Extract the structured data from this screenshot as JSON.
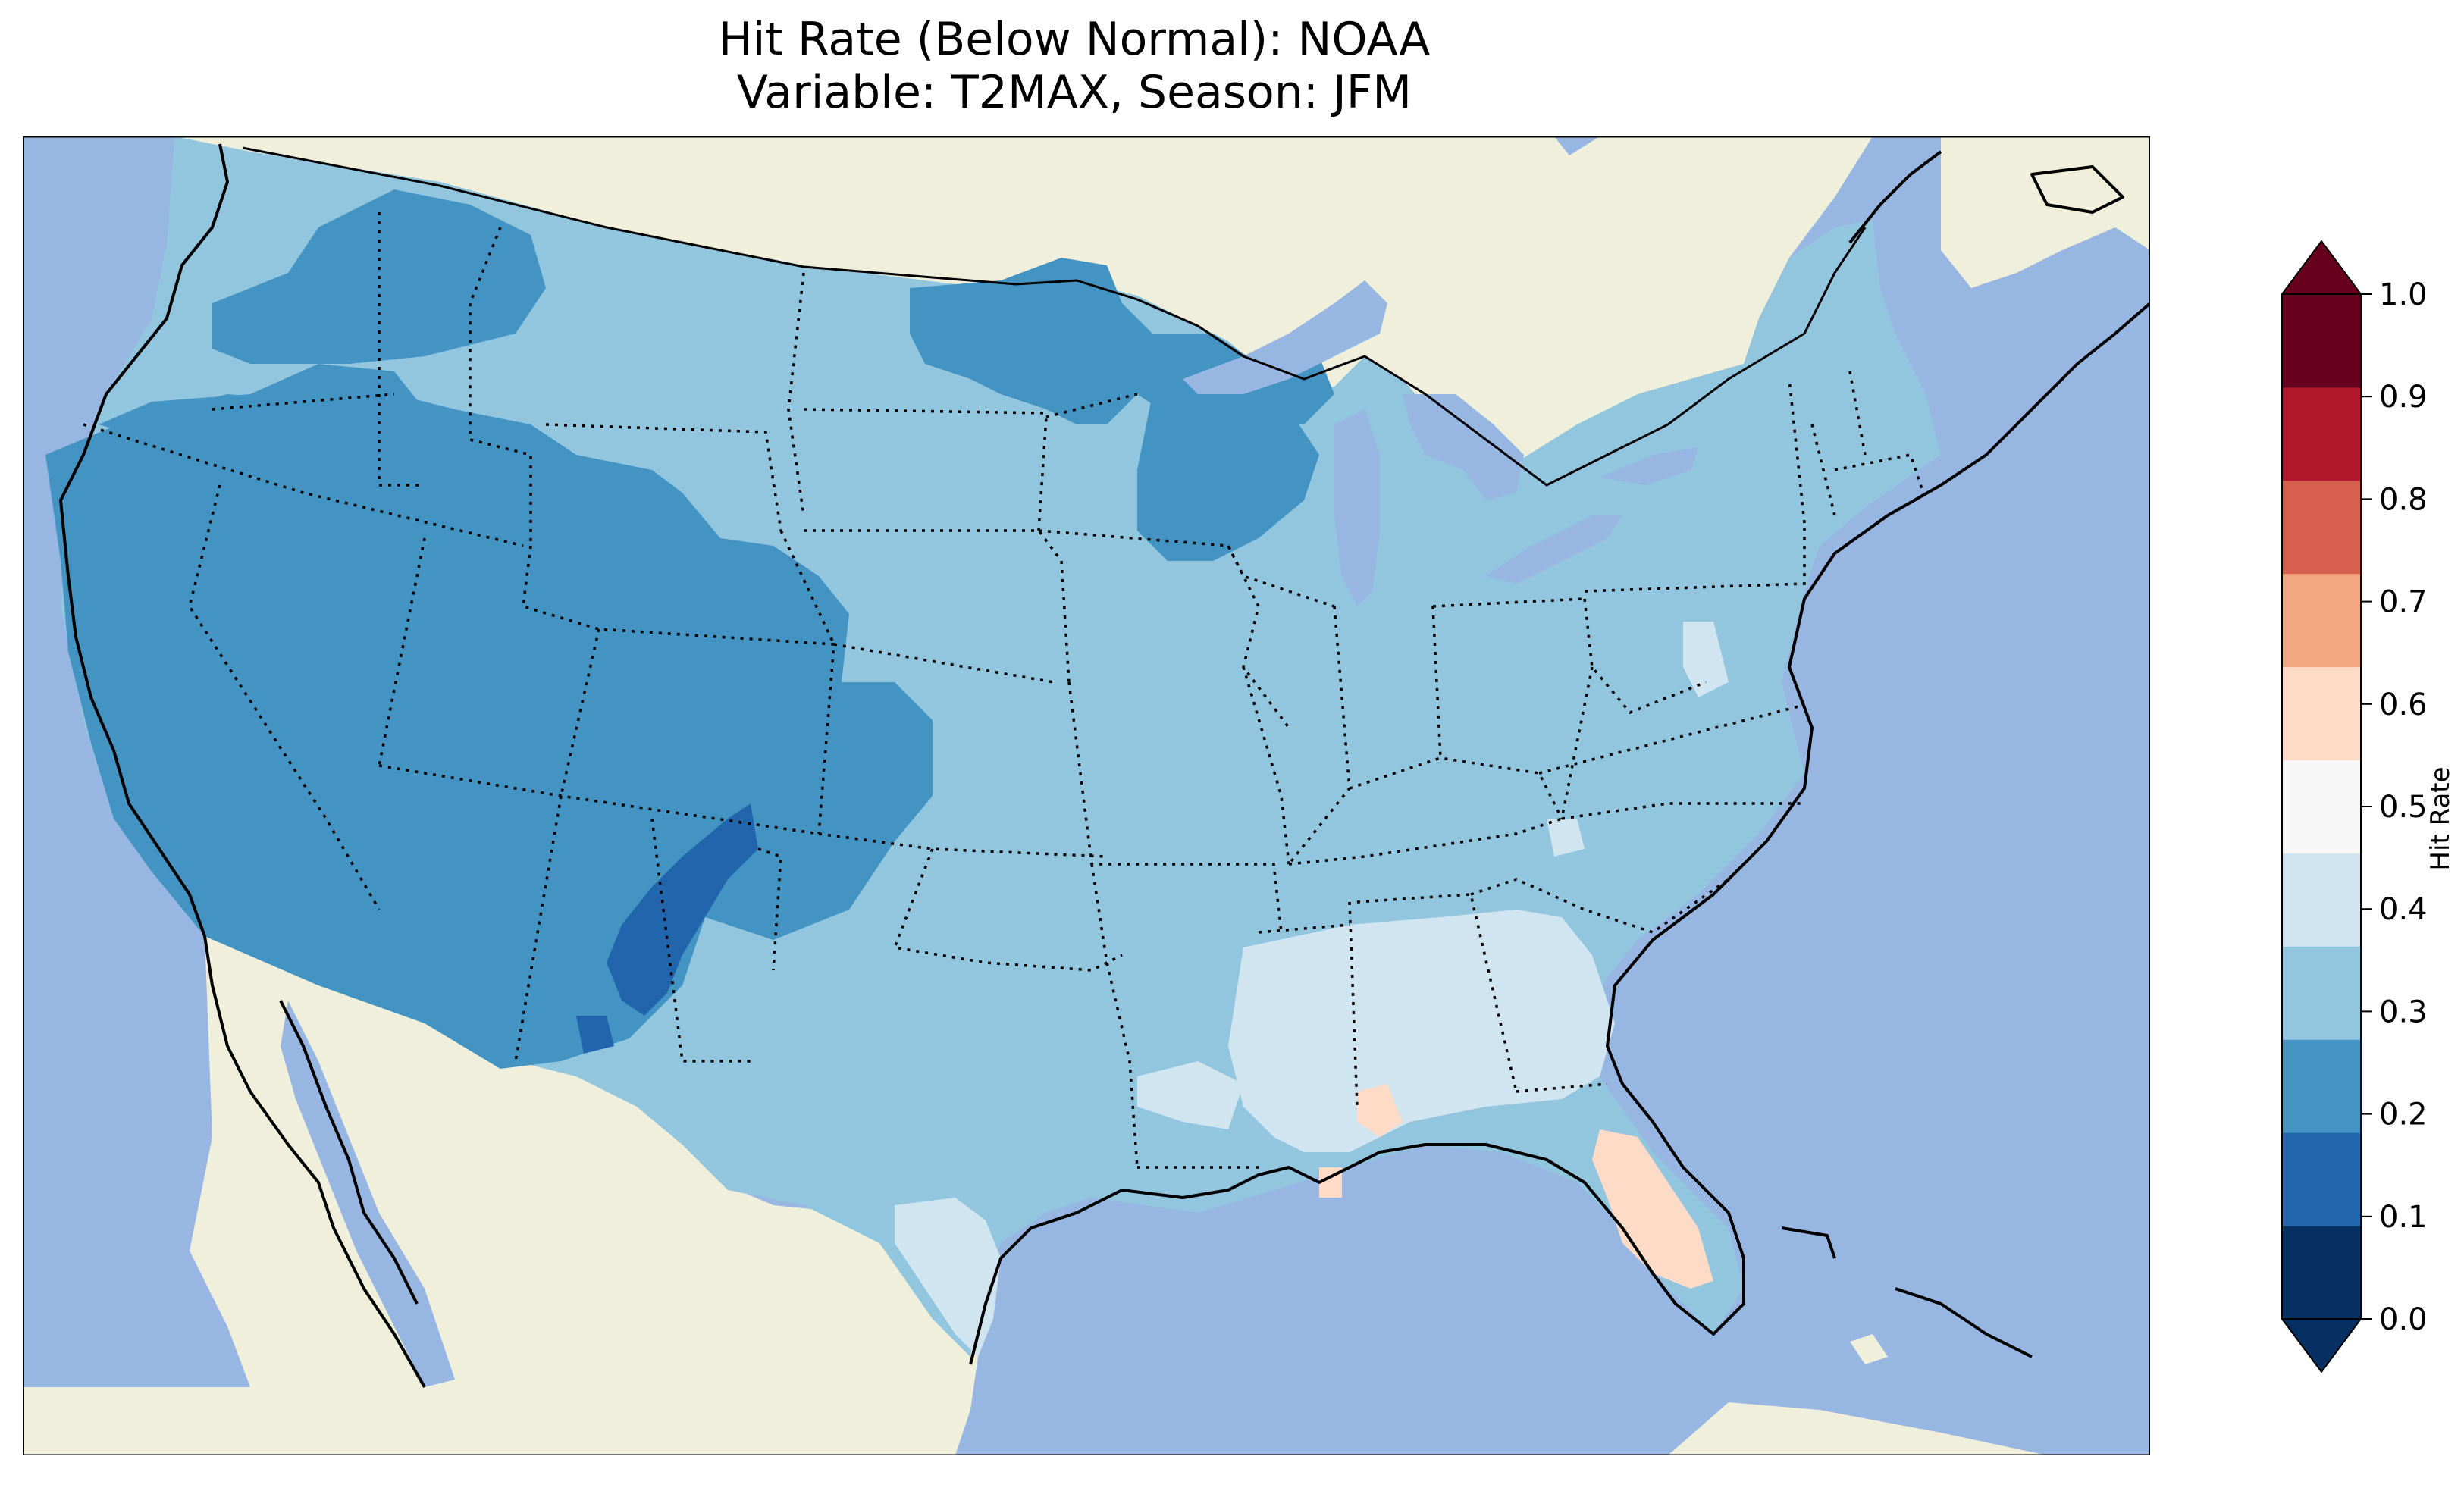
{
  "title": {
    "line1": "Hit Rate (Below Normal): NOAA",
    "line2": "Variable: T2MAX, Season: JFM"
  },
  "map": {
    "extent": "Contiguous United States",
    "colors": {
      "ocean": "#97b6e1",
      "land": "#efefdb",
      "lakes": "#97b6e1"
    },
    "field_colors": {
      "0.1-0.2": "#2166ac",
      "0.2-0.3": "#4393c3",
      "0.3-0.4": "#92c5de",
      "0.4-0.5": "#d1e5f0",
      "0.5-0.6": "#fddbc7"
    }
  },
  "colorbar": {
    "label": "Hit Rate",
    "ticks": [
      "0.0",
      "0.1",
      "0.2",
      "0.3",
      "0.4",
      "0.5",
      "0.6",
      "0.7",
      "0.8",
      "0.9",
      "1.0"
    ],
    "colors": [
      "#053061",
      "#2166ac",
      "#4393c3",
      "#92c5de",
      "#d1e5f0",
      "#f7f7f7",
      "#fddbc7",
      "#f4a582",
      "#d6604d",
      "#b2182b",
      "#67001f"
    ],
    "under_color": "#053061",
    "over_color": "#67001f",
    "extend": "both"
  }
}
